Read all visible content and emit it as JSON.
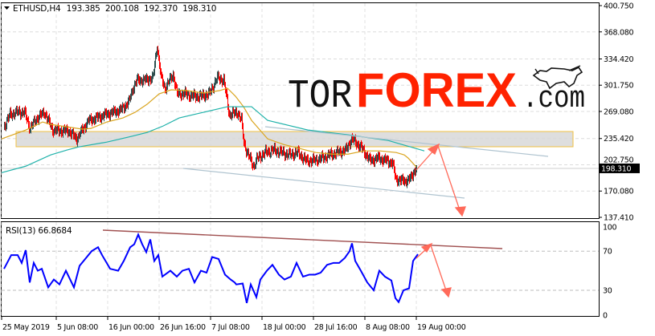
{
  "header": {
    "symbol": "ETHUSD,H4",
    "open": "193.385",
    "high": "200.108",
    "low": "192.370",
    "close": "198.310"
  },
  "logo": {
    "part1": "TOR",
    "part2": "FOREX",
    "part3": ".com"
  },
  "colors": {
    "bull_candle": "#2f4f4f",
    "bear_candle": "#ff0000",
    "ma_fast": "#daa520",
    "ma_slow": "#20b2aa",
    "rsi": "#0000ff",
    "arrow": "#ff6a5a",
    "logo_red": "#ff2200",
    "zone": "#d8d8d8",
    "zone_border": "#f0c040"
  },
  "chart_data": [
    {
      "type": "candlestick",
      "title": "ETHUSD,H4",
      "ylim": [
        137.41,
        400.75
      ],
      "y_ticks": [
        "400.750",
        "368.080",
        "334.420",
        "301.750",
        "269.080",
        "235.420",
        "202.750",
        "170.080",
        "137.410"
      ],
      "last_price_label": "198.310",
      "x_ticks": [
        {
          "date": "2019-05-25T00:00",
          "label": "25 May 2019"
        },
        {
          "date": "2019-06-05T08:00",
          "label": "5 Jun 08:00"
        },
        {
          "date": "2019-06-16T00:00",
          "label": "16 Jun 00:00"
        },
        {
          "date": "2019-06-26T16:00",
          "label": "26 Jun 16:00"
        },
        {
          "date": "2019-07-07T08:00",
          "label": "7 Jul 08:00"
        },
        {
          "date": "2019-07-18T00:00",
          "label": "18 Jul 00:00"
        },
        {
          "date": "2019-07-28T16:00",
          "label": "28 Jul 16:00"
        },
        {
          "date": "2019-08-08T08:00",
          "label": "8 Aug 08:00"
        },
        {
          "date": "2019-08-19T00:00",
          "label": "19 Aug 00:00"
        }
      ],
      "close": [
        [
          "2019-05-25T12:00",
          251
        ],
        [
          "2019-05-26T16:00",
          265
        ],
        [
          "2019-05-28T00:00",
          268
        ],
        [
          "2019-05-29T16:00",
          268
        ],
        [
          "2019-05-30T20:00",
          248
        ],
        [
          "2019-06-01T04:00",
          260
        ],
        [
          "2019-06-02T20:00",
          268
        ],
        [
          "2019-06-04T12:00",
          246
        ],
        [
          "2019-06-06T04:00",
          245
        ],
        [
          "2019-06-07T20:00",
          245
        ],
        [
          "2019-06-09T12:00",
          235
        ],
        [
          "2019-06-10T08:00",
          243
        ],
        [
          "2019-06-12T00:00",
          258
        ],
        [
          "2019-06-13T16:00",
          261
        ],
        [
          "2019-06-15T08:00",
          265
        ],
        [
          "2019-06-17T00:00",
          268
        ],
        [
          "2019-06-18T16:00",
          271
        ],
        [
          "2019-06-20T08:00",
          281
        ],
        [
          "2019-06-21T04:00",
          298
        ],
        [
          "2019-06-22T00:00",
          308
        ],
        [
          "2019-06-23T16:00",
          308
        ],
        [
          "2019-06-25T08:00",
          311
        ],
        [
          "2019-06-26T04:00",
          351
        ],
        [
          "2019-06-27T00:00",
          311
        ],
        [
          "2019-06-27T20:00",
          298
        ],
        [
          "2019-06-29T12:00",
          315
        ],
        [
          "2019-06-30T08:00",
          291
        ],
        [
          "2019-07-02T00:00",
          291
        ],
        [
          "2019-07-03T16:00",
          288
        ],
        [
          "2019-07-05T08:00",
          288
        ],
        [
          "2019-07-07T00:00",
          291
        ],
        [
          "2019-07-08T16:00",
          311
        ],
        [
          "2019-07-10T00:00",
          308
        ],
        [
          "2019-07-11T04:00",
          265
        ],
        [
          "2019-07-12T20:00",
          268
        ],
        [
          "2019-07-13T16:00",
          258
        ],
        [
          "2019-07-14T04:00",
          231
        ],
        [
          "2019-07-14T20:00",
          218
        ],
        [
          "2019-07-16T04:00",
          201
        ],
        [
          "2019-07-17T00:00",
          211
        ],
        [
          "2019-07-18T16:00",
          218
        ],
        [
          "2019-07-20T08:00",
          221
        ],
        [
          "2019-07-22T00:00",
          218
        ],
        [
          "2019-07-23T16:00",
          215
        ],
        [
          "2019-07-25T08:00",
          218
        ],
        [
          "2019-07-27T00:00",
          208
        ],
        [
          "2019-07-28T16:00",
          208
        ],
        [
          "2019-07-30T08:00",
          211
        ],
        [
          "2019-08-01T00:00",
          215
        ],
        [
          "2019-08-02T16:00",
          218
        ],
        [
          "2019-08-04T08:00",
          221
        ],
        [
          "2019-08-05T12:00",
          235
        ],
        [
          "2019-08-06T20:00",
          228
        ],
        [
          "2019-08-07T16:00",
          223
        ],
        [
          "2019-08-09T08:00",
          208
        ],
        [
          "2019-08-11T00:00",
          211
        ],
        [
          "2019-08-12T16:00",
          208
        ],
        [
          "2019-08-14T00:00",
          205
        ],
        [
          "2019-08-14T16:00",
          185
        ],
        [
          "2019-08-16T00:00",
          183
        ],
        [
          "2019-08-16T20:00",
          183
        ],
        [
          "2019-08-17T16:00",
          185
        ],
        [
          "2019-08-18T12:00",
          195
        ],
        [
          "2019-08-19T00:00",
          198.31
        ]
      ],
      "series": [
        {
          "type": "line",
          "color": "#daa520",
          "values": [
            [
              "2019-05-25T00:00",
              235
            ],
            [
              "2019-05-30T00:00",
              246
            ],
            [
              "2019-06-02T12:00",
              256
            ],
            [
              "2019-06-04T04:00",
              253
            ],
            [
              "2019-06-07T12:00",
              250
            ],
            [
              "2019-06-10T20:00",
              247
            ],
            [
              "2019-06-12T12:00",
              248
            ],
            [
              "2019-06-15T20:00",
              256
            ],
            [
              "2019-06-19T04:00",
              261
            ],
            [
              "2019-06-21T16:00",
              268
            ],
            [
              "2019-06-24T04:00",
              278
            ],
            [
              "2019-06-26T16:00",
              291
            ],
            [
              "2019-06-29T04:00",
              296
            ],
            [
              "2019-07-02T12:00",
              295
            ],
            [
              "2019-07-05T20:00",
              292
            ],
            [
              "2019-07-09T04:00",
              295
            ],
            [
              "2019-07-10T20:00",
              298
            ],
            [
              "2019-07-12T12:00",
              288
            ],
            [
              "2019-07-14T04:00",
              275
            ],
            [
              "2019-07-15T20:00",
              258
            ],
            [
              "2019-07-19T04:00",
              235
            ],
            [
              "2019-07-22T12:00",
              228
            ],
            [
              "2019-07-25T20:00",
              223
            ],
            [
              "2019-07-29T04:00",
              218
            ],
            [
              "2019-08-01T12:00",
              216
            ],
            [
              "2019-08-04T20:00",
              216
            ],
            [
              "2019-08-08T04:00",
              220
            ],
            [
              "2019-08-11T12:00",
              220
            ],
            [
              "2019-08-14T20:00",
              218
            ],
            [
              "2019-08-16T12:00",
              215
            ],
            [
              "2019-08-17T08:00",
              211
            ],
            [
              "2019-08-19T00:00",
              200
            ]
          ]
        },
        {
          "type": "line",
          "color": "#20b2aa",
          "values": [
            [
              "2019-05-25T00:00",
              193
            ],
            [
              "2019-05-30T00:00",
              201
            ],
            [
              "2019-06-04T04:00",
              215
            ],
            [
              "2019-06-07T12:00",
              221
            ],
            [
              "2019-06-10T00:00",
              225
            ],
            [
              "2019-06-15T20:00",
              231
            ],
            [
              "2019-06-20T20:00",
              238
            ],
            [
              "2019-06-24T04:00",
              243
            ],
            [
              "2019-06-27T12:00",
              251
            ],
            [
              "2019-06-30T20:00",
              261
            ],
            [
              "2019-07-05T20:00",
              268
            ],
            [
              "2019-07-10T20:00",
              275
            ],
            [
              "2019-07-12T12:00",
              275
            ],
            [
              "2019-07-15T20:00",
              275
            ],
            [
              "2019-07-19T04:00",
              258
            ],
            [
              "2019-07-27T12:00",
              246
            ],
            [
              "2019-08-04T20:00",
              240
            ],
            [
              "2019-08-13T04:00",
              233
            ],
            [
              "2019-08-20T16:00",
              220
            ]
          ]
        }
      ]
    },
    {
      "type": "line",
      "title": "RSI(13) 66.8684",
      "ylim": [
        0,
        100
      ],
      "y_ticks": [
        "100",
        "70",
        "30",
        "0"
      ],
      "levels": [
        70,
        30
      ],
      "values": [
        [
          "2019-05-25T12:00",
          52
        ],
        [
          "2019-05-27T00:00",
          66
        ],
        [
          "2019-05-28T08:00",
          66
        ],
        [
          "2019-05-29T04:00",
          58
        ],
        [
          "2019-05-30T00:00",
          71
        ],
        [
          "2019-05-30T20:00",
          38
        ],
        [
          "2019-05-31T16:00",
          58
        ],
        [
          "2019-06-01T12:00",
          50
        ],
        [
          "2019-06-02T08:00",
          52
        ],
        [
          "2019-06-03T16:00",
          33
        ],
        [
          "2019-06-04T20:00",
          41
        ],
        [
          "2019-06-06T00:00",
          36
        ],
        [
          "2019-06-07T08:00",
          50
        ],
        [
          "2019-06-09T00:00",
          33
        ],
        [
          "2019-06-10T04:00",
          55
        ],
        [
          "2019-06-11T12:00",
          63
        ],
        [
          "2019-06-12T16:00",
          70
        ],
        [
          "2019-06-14T00:00",
          74
        ],
        [
          "2019-06-14T20:00",
          66
        ],
        [
          "2019-06-16T12:00",
          52
        ],
        [
          "2019-06-18T04:00",
          50
        ],
        [
          "2019-06-19T08:00",
          60
        ],
        [
          "2019-06-20T16:00",
          74
        ],
        [
          "2019-06-21T12:00",
          77
        ],
        [
          "2019-06-22T08:00",
          87
        ],
        [
          "2019-06-23T04:00",
          77
        ],
        [
          "2019-06-24T00:00",
          69
        ],
        [
          "2019-06-24T20:00",
          82
        ],
        [
          "2019-06-25T16:00",
          60
        ],
        [
          "2019-06-26T12:00",
          66
        ],
        [
          "2019-06-27T08:00",
          44
        ],
        [
          "2019-06-29T00:00",
          50
        ],
        [
          "2019-06-30T08:00",
          44
        ],
        [
          "2019-07-01T12:00",
          50
        ],
        [
          "2019-07-02T20:00",
          52
        ],
        [
          "2019-07-04T00:00",
          38
        ],
        [
          "2019-07-05T08:00",
          50
        ],
        [
          "2019-07-06T12:00",
          48
        ],
        [
          "2019-07-07T16:00",
          64
        ],
        [
          "2019-07-09T00:00",
          62
        ],
        [
          "2019-07-10T08:00",
          46
        ],
        [
          "2019-07-11T12:00",
          41
        ],
        [
          "2019-07-12T16:00",
          36
        ],
        [
          "2019-07-12T08:00",
          38
        ],
        [
          "2019-07-14T00:00",
          37
        ],
        [
          "2019-07-14T20:00",
          17
        ],
        [
          "2019-07-15T16:00",
          36
        ],
        [
          "2019-07-16T20:00",
          23
        ],
        [
          "2019-07-17T16:00",
          41
        ],
        [
          "2019-07-19T00:00",
          50
        ],
        [
          "2019-07-20T04:00",
          56
        ],
        [
          "2019-07-21T12:00",
          46
        ],
        [
          "2019-07-22T16:00",
          41
        ],
        [
          "2019-07-24T00:00",
          44
        ],
        [
          "2019-07-25T04:00",
          58
        ],
        [
          "2019-07-26T12:00",
          44
        ],
        [
          "2019-07-27T20:00",
          46
        ],
        [
          "2019-07-29T00:00",
          46
        ],
        [
          "2019-07-30T04:00",
          48
        ],
        [
          "2019-07-31T12:00",
          56
        ],
        [
          "2019-08-01T20:00",
          58
        ],
        [
          "2019-08-03T00:00",
          58
        ],
        [
          "2019-08-04T04:00",
          63
        ],
        [
          "2019-08-05T04:00",
          70
        ],
        [
          "2019-08-05T16:00",
          78
        ],
        [
          "2019-08-06T08:00",
          60
        ],
        [
          "2019-08-07T12:00",
          50
        ],
        [
          "2019-08-08T20:00",
          38
        ],
        [
          "2019-08-10T04:00",
          30
        ],
        [
          "2019-08-11T08:00",
          50
        ],
        [
          "2019-08-12T12:00",
          44
        ],
        [
          "2019-08-13T20:00",
          40
        ],
        [
          "2019-08-14T16:00",
          22
        ],
        [
          "2019-08-15T08:00",
          18
        ],
        [
          "2019-08-16T08:00",
          30
        ],
        [
          "2019-08-17T12:00",
          32
        ],
        [
          "2019-08-18T08:00",
          60
        ],
        [
          "2019-08-19T08:00",
          66.87
        ]
      ]
    }
  ]
}
